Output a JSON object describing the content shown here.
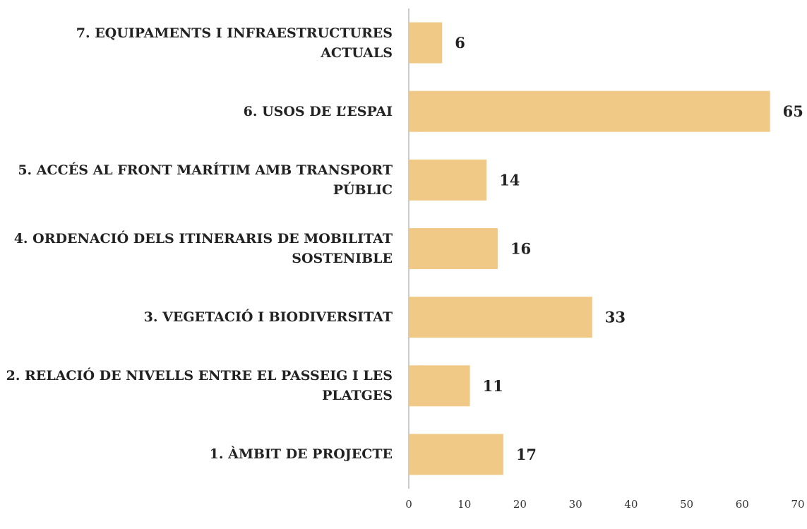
{
  "chart_data": {
    "type": "bar",
    "orientation": "horizontal",
    "categories": [
      "7. EQUIPAMENTS I INFRAESTRUCTURES ACTUALS",
      "6. USOS DE L’ESPAI",
      "5. ACCÉS AL FRONT MARÍTIM AMB TRANSPORT PÚBLIC",
      "4. ORDENACIÓ DELS ITINERARIS DE MOBILITAT SOSTENIBLE",
      "3. VEGETACIÓ I BIODIVERSITAT",
      "2. RELACIÓ DE NIVELLS ENTRE EL PASSEIG I LES PLATGES",
      "1. ÀMBIT DE PROJECTE"
    ],
    "values": [
      6,
      65,
      14,
      16,
      33,
      11,
      17
    ],
    "color": "#f0c987",
    "xlim": [
      0,
      70
    ],
    "xticks": [
      0,
      10,
      20,
      30,
      40,
      50,
      60,
      70
    ]
  }
}
